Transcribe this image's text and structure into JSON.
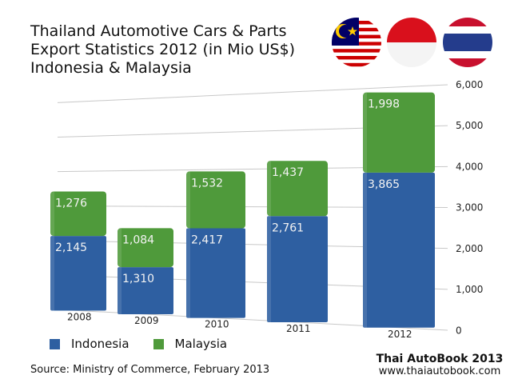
{
  "title_lines": [
    "Thailand Automotive Cars & Parts",
    "Export Statistics 2012 (in Mio US$)",
    "Indonesia & Malaysia"
  ],
  "source": "Source: Ministry of Commerce, February 2013",
  "brand": {
    "name": "Thai AutoBook 2013",
    "url": "www.thaiautobook.com"
  },
  "flags": [
    "malaysia-flag",
    "indonesia-flag",
    "thailand-flag"
  ],
  "colors": {
    "indonesia": "#2e5fa1",
    "malaysia": "#4f9a3b"
  },
  "chart_data": {
    "type": "bar",
    "stacked": true,
    "categories": [
      "2008",
      "2009",
      "2010",
      "2011",
      "2012"
    ],
    "series": [
      {
        "name": "Indonesia",
        "values": [
          2145,
          1310,
          2417,
          2761,
          3865
        ],
        "labels": [
          "2,145",
          "1,310",
          "2,417",
          "2,761",
          "3,865"
        ]
      },
      {
        "name": "Malaysia",
        "values": [
          1276,
          1084,
          1532,
          1437,
          1998
        ],
        "labels": [
          "1,276",
          "1,084",
          "1,532",
          "1,437",
          "1,998"
        ]
      }
    ],
    "yticks": [
      "0",
      "1,000",
      "2,000",
      "3,000",
      "4,000",
      "5,000",
      "6,000"
    ],
    "ylim": [
      0,
      6000
    ],
    "legend": "bottom-left",
    "grid": true
  }
}
